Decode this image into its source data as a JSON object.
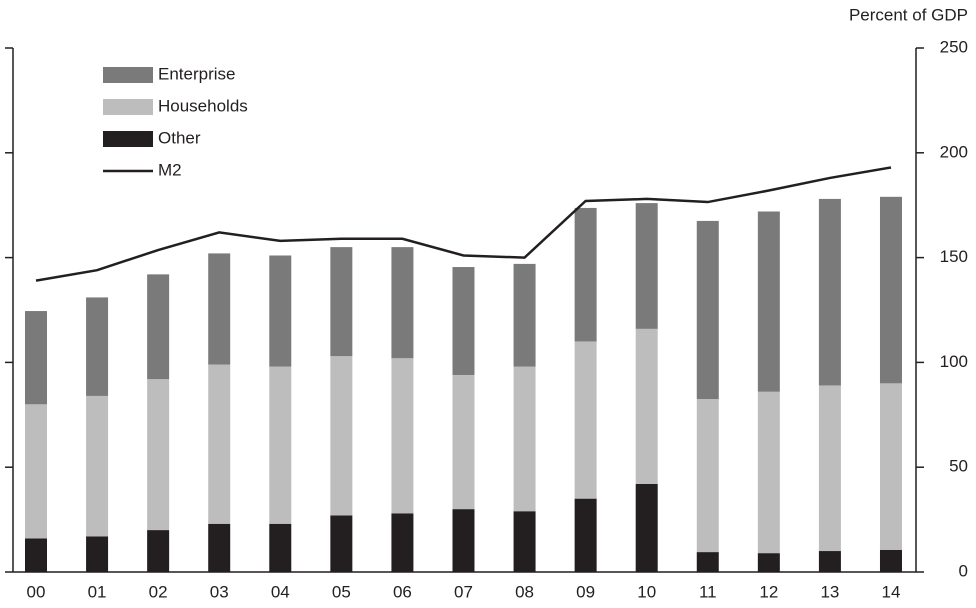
{
  "chart_data": {
    "type": "bar",
    "stacked": true,
    "axis_label": "Percent of GDP",
    "categories": [
      "00",
      "01",
      "02",
      "03",
      "04",
      "05",
      "06",
      "07",
      "08",
      "09",
      "10",
      "11",
      "12",
      "13",
      "14"
    ],
    "series": [
      {
        "name": "Other",
        "color": "#231f20",
        "values": [
          16,
          17,
          20,
          23,
          23,
          27,
          28,
          30,
          29,
          35,
          42,
          9.5,
          9,
          10,
          10.5
        ]
      },
      {
        "name": "Households",
        "color": "#bdbdbd",
        "values": [
          64,
          67,
          72,
          76,
          75,
          76,
          74,
          64,
          69,
          75,
          74,
          73,
          77,
          79,
          79.5
        ]
      },
      {
        "name": "Enterprise",
        "color": "#7a7a7a",
        "values": [
          44.5,
          47,
          50,
          53,
          53,
          52,
          53,
          51.5,
          49,
          63.7,
          60,
          85,
          86,
          89,
          89
        ]
      },
      {
        "name": "M2",
        "type": "line",
        "color": "#231f20",
        "values": [
          139,
          144,
          153.6,
          162,
          158,
          159,
          159,
          151,
          150,
          177,
          178,
          176.5,
          182,
          188,
          193
        ]
      }
    ],
    "legend_order": [
      "Enterprise",
      "Households",
      "Other",
      "M2"
    ],
    "ylim": [
      0,
      250
    ],
    "yticks": [
      0,
      50,
      100,
      150,
      200,
      250
    ]
  }
}
